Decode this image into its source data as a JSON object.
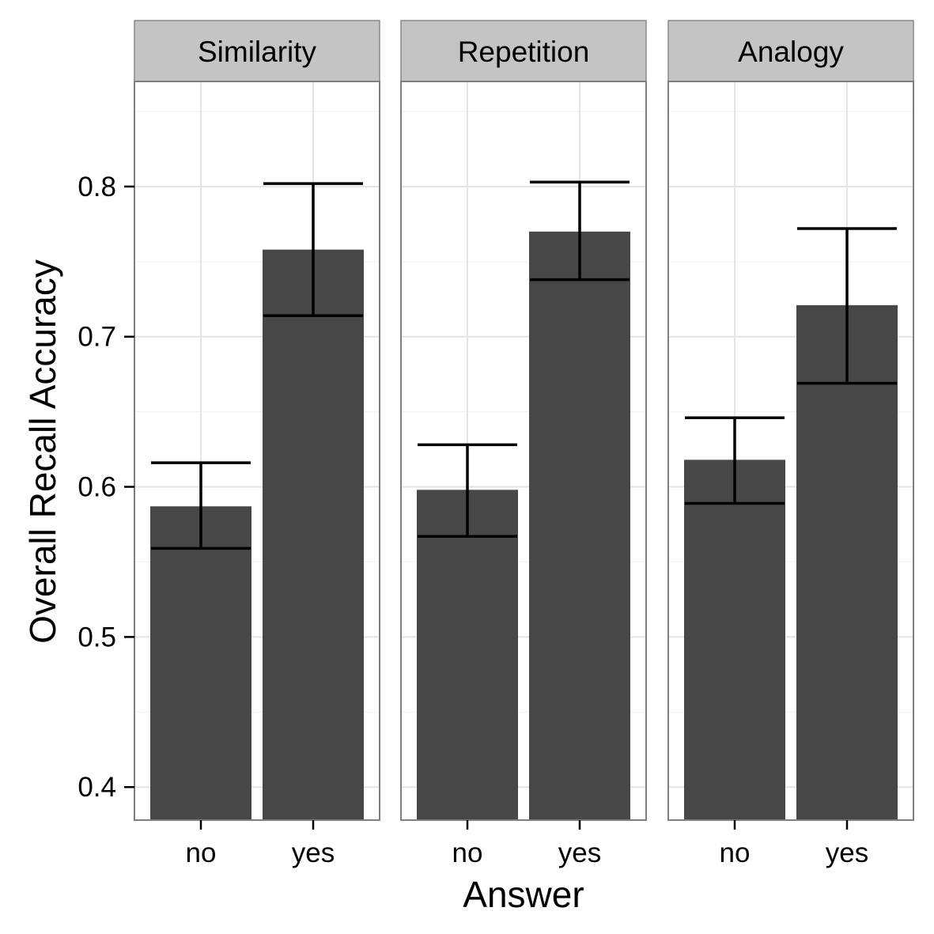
{
  "chart_data": {
    "type": "bar",
    "xlabel": "Answer",
    "ylabel": "Overall Recall Accuracy",
    "categories": [
      "no",
      "yes"
    ],
    "y_ticks": [
      "0.4",
      "0.5",
      "0.6",
      "0.7",
      "0.8"
    ],
    "ylim": [
      0.378,
      0.87
    ],
    "grid": true,
    "bar_color": "#474747",
    "errorbar_color": "#000000",
    "strip_color": "#c4c4c4",
    "panels": [
      {
        "label": "Similarity",
        "values": [
          0.587,
          0.758
        ],
        "error_low": [
          0.559,
          0.714
        ],
        "error_high": [
          0.616,
          0.802
        ]
      },
      {
        "label": "Repetition",
        "values": [
          0.598,
          0.77
        ],
        "error_low": [
          0.567,
          0.738
        ],
        "error_high": [
          0.628,
          0.803
        ]
      },
      {
        "label": "Analogy",
        "values": [
          0.618,
          0.721
        ],
        "error_low": [
          0.589,
          0.669
        ],
        "error_high": [
          0.646,
          0.772
        ]
      }
    ]
  }
}
